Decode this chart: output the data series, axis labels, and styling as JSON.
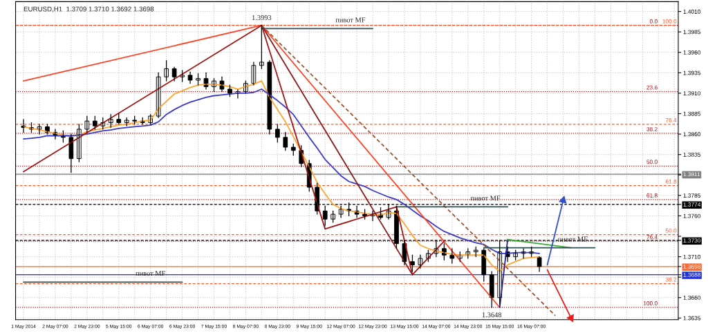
{
  "chart_data": {
    "type": "candlestick",
    "title": "EURUSD,H1  1.3709 1.3710 1.3692 1.3698",
    "color": "#000000",
    "categories": [
      "1 May 2014",
      null,
      null,
      null,
      "2 May 07:00",
      null,
      null,
      null,
      "2 May 23:00",
      null,
      null,
      null,
      "5 May 15:00",
      null,
      null,
      null,
      "6 May 07:00",
      null,
      null,
      null,
      "6 May 23:00",
      null,
      null,
      null,
      "7 May 15:00",
      null,
      null,
      null,
      "8 May 07:00",
      null,
      null,
      null,
      "8 May 23:00",
      null,
      null,
      null,
      "9 May 15:00",
      null,
      null,
      null,
      "12 May 07:00",
      null,
      null,
      null,
      "12 May 23:00",
      null,
      null,
      null,
      "13 May 15:00",
      null,
      null,
      null,
      "14 May 07:00",
      null,
      null,
      null,
      "14 May 23:00",
      null,
      null,
      null,
      "15 May 15:00",
      null,
      null,
      null,
      "16 May 07:00",
      null,
      null,
      null,
      null,
      null,
      null,
      null,
      null,
      null,
      null,
      null,
      null,
      null,
      null,
      null,
      null,
      null,
      null
    ],
    "ohlc": [
      [
        1.387,
        1.3878,
        1.3862,
        1.3868
      ],
      [
        1.3868,
        1.3874,
        1.3862,
        1.3866
      ],
      [
        1.3866,
        1.3872,
        1.386,
        1.3869
      ],
      [
        1.3869,
        1.3872,
        1.386,
        1.3862
      ],
      [
        1.3862,
        1.3866,
        1.3854,
        1.3858
      ],
      [
        1.3858,
        1.3864,
        1.385,
        1.3856
      ],
      [
        1.3856,
        1.386,
        1.3813,
        1.383
      ],
      [
        1.383,
        1.3872,
        1.3826,
        1.3866
      ],
      [
        1.3866,
        1.3882,
        1.3862,
        1.3876
      ],
      [
        1.3876,
        1.3882,
        1.3866,
        1.387
      ],
      [
        1.387,
        1.388,
        1.3866,
        1.3874
      ],
      [
        1.3874,
        1.3884,
        1.3868,
        1.3878
      ],
      [
        1.3878,
        1.3885,
        1.3872,
        1.3874
      ],
      [
        1.3874,
        1.388,
        1.387,
        1.3877
      ],
      [
        1.3877,
        1.3882,
        1.3872,
        1.3876
      ],
      [
        1.3876,
        1.388,
        1.3872,
        1.3874
      ],
      [
        1.3874,
        1.3884,
        1.3872,
        1.3882
      ],
      [
        1.3882,
        1.3935,
        1.388,
        1.393
      ],
      [
        1.393,
        1.395,
        1.3925,
        1.394
      ],
      [
        1.394,
        1.3942,
        1.3925,
        1.393
      ],
      [
        1.393,
        1.3938,
        1.3924,
        1.3932
      ],
      [
        1.3932,
        1.3936,
        1.3922,
        1.3926
      ],
      [
        1.3926,
        1.3934,
        1.392,
        1.3928
      ],
      [
        1.3928,
        1.3935,
        1.3915,
        1.3918
      ],
      [
        1.3918,
        1.3928,
        1.3912,
        1.3925
      ],
      [
        1.3925,
        1.393,
        1.3912,
        1.3915
      ],
      [
        1.3915,
        1.392,
        1.3906,
        1.391
      ],
      [
        1.391,
        1.3914,
        1.3904,
        1.3912
      ],
      [
        1.3912,
        1.3925,
        1.391,
        1.3922
      ],
      [
        1.3922,
        1.3948,
        1.392,
        1.3944
      ],
      [
        1.3944,
        1.3993,
        1.394,
        1.3948
      ],
      [
        1.3948,
        1.395,
        1.386,
        1.3866
      ],
      [
        1.3866,
        1.3872,
        1.385,
        1.3856
      ],
      [
        1.3856,
        1.3862,
        1.384,
        1.3844
      ],
      [
        1.3844,
        1.3848,
        1.3834,
        1.384
      ],
      [
        1.384,
        1.3846,
        1.382,
        1.3824
      ],
      [
        1.3824,
        1.3828,
        1.379,
        1.3795
      ],
      [
        1.3795,
        1.38,
        1.3762,
        1.3766
      ],
      [
        1.3766,
        1.3772,
        1.3748,
        1.3756
      ],
      [
        1.3756,
        1.3766,
        1.3752,
        1.3762
      ],
      [
        1.3762,
        1.3772,
        1.3758,
        1.3768
      ],
      [
        1.3768,
        1.3776,
        1.376,
        1.3766
      ],
      [
        1.3766,
        1.3772,
        1.3758,
        1.3762
      ],
      [
        1.3762,
        1.3768,
        1.3756,
        1.376
      ],
      [
        1.376,
        1.3766,
        1.3754,
        1.3762
      ],
      [
        1.3762,
        1.377,
        1.3756,
        1.3758
      ],
      [
        1.3758,
        1.3774,
        1.3756,
        1.3766
      ],
      [
        1.3766,
        1.3772,
        1.372,
        1.3726
      ],
      [
        1.3726,
        1.373,
        1.37,
        1.3704
      ],
      [
        1.3704,
        1.3712,
        1.3692,
        1.37
      ],
      [
        1.37,
        1.3712,
        1.3696,
        1.3708
      ],
      [
        1.3708,
        1.3718,
        1.3704,
        1.3714
      ],
      [
        1.3714,
        1.373,
        1.371,
        1.372
      ],
      [
        1.372,
        1.3726,
        1.3706,
        1.3712
      ],
      [
        1.3712,
        1.372,
        1.3702,
        1.3708
      ],
      [
        1.3708,
        1.3716,
        1.3704,
        1.3712
      ],
      [
        1.3712,
        1.372,
        1.3708,
        1.3716
      ],
      [
        1.3716,
        1.3722,
        1.371,
        1.3718
      ],
      [
        1.3718,
        1.372,
        1.368,
        1.3688
      ],
      [
        1.3688,
        1.3692,
        1.3648,
        1.366
      ],
      [
        1.366,
        1.373,
        1.3652,
        1.3716
      ],
      [
        1.3716,
        1.3722,
        1.3704,
        1.371
      ],
      [
        1.371,
        1.3718,
        1.3706,
        1.3714
      ],
      [
        1.3714,
        1.372,
        1.3708,
        1.3716
      ],
      [
        1.3716,
        1.3722,
        1.371,
        1.3714
      ],
      [
        1.3709,
        1.371,
        1.3692,
        1.3698
      ],
      null,
      null,
      null,
      null,
      null,
      null,
      null,
      null,
      null,
      null,
      null,
      null,
      null,
      null,
      null,
      null,
      null
    ],
    "series": [
      {
        "type": "line",
        "color": "#ffa531",
        "values": [
          1.3869,
          1.3867,
          1.3865,
          1.3863,
          1.3861,
          1.3859,
          1.3857,
          1.3859,
          1.3863,
          1.3865,
          1.3867,
          1.3869,
          1.3871,
          1.3872,
          1.3874,
          1.3876,
          1.3877,
          1.3891,
          1.39,
          1.3909,
          1.3913,
          1.3917,
          1.392,
          1.3921,
          1.3921,
          1.392,
          1.3918,
          1.3915,
          1.3918,
          1.3921,
          1.3925,
          1.3905,
          1.389,
          1.3875,
          1.3857,
          1.3838,
          1.382,
          1.3801,
          1.3787,
          1.3774,
          1.3769,
          1.3766,
          1.3765,
          1.3763,
          1.3762,
          1.3761,
          1.3764,
          1.3763,
          1.375,
          1.3736,
          1.3724,
          1.372,
          1.3717,
          1.3715,
          1.3713,
          1.3712,
          1.3712,
          1.3712,
          1.3712,
          1.37,
          1.3692,
          1.37,
          1.3704,
          1.3708,
          1.3709,
          1.371,
          null,
          null,
          null,
          null,
          null,
          null,
          null,
          null,
          null,
          null,
          null,
          null,
          null,
          null,
          null,
          null,
          null
        ]
      },
      {
        "type": "line",
        "color": "#3a3ac8",
        "values": [
          1.3854,
          1.3855,
          1.3856,
          1.3858,
          1.3858,
          1.3858,
          1.3858,
          1.3859,
          1.386,
          1.3862,
          1.3864,
          1.3865,
          1.3867,
          1.3868,
          1.3869,
          1.387,
          1.3871,
          1.3875,
          1.3884,
          1.389,
          1.3895,
          1.3899,
          1.3902,
          1.3905,
          1.3907,
          1.3908,
          1.3909,
          1.391,
          1.391,
          1.3911,
          1.3915,
          1.3908,
          1.3901,
          1.3893,
          1.3884,
          1.387,
          1.3856,
          1.3843,
          1.3829,
          1.3819,
          1.3809,
          1.3802,
          1.3799,
          1.3796,
          1.3791,
          1.3787,
          1.3783,
          1.378,
          1.3774,
          1.3767,
          1.376,
          1.3754,
          1.3747,
          1.3741,
          1.3737,
          1.3733,
          1.373,
          1.3727,
          1.3725,
          1.3719,
          1.3714,
          1.3714,
          1.3715,
          1.3715,
          1.3715,
          1.3714,
          null,
          null,
          null,
          null,
          null,
          null,
          null,
          null,
          null,
          null,
          null,
          null,
          null,
          null,
          null,
          null,
          null
        ]
      },
      {
        "type": "line",
        "color": "#ff4326",
        "values": [
          1.3925,
          null,
          null,
          null,
          null,
          null,
          null,
          null,
          null,
          null,
          null,
          null,
          null,
          null,
          null,
          null,
          null,
          null,
          null,
          null,
          null,
          null,
          null,
          null,
          null,
          null,
          null,
          null,
          null,
          null,
          1.3993,
          null,
          null,
          null,
          null,
          null,
          null,
          null,
          null,
          null,
          null,
          null,
          null,
          null,
          null,
          null,
          null,
          null,
          null,
          null,
          null,
          null,
          null,
          null,
          null,
          null,
          null,
          null,
          null,
          null,
          1.3648,
          null,
          null,
          null,
          null,
          null,
          null,
          null,
          null,
          null,
          null,
          null,
          null,
          null,
          null,
          null,
          null,
          null,
          null,
          null,
          null,
          null,
          null
        ]
      },
      {
        "type": "line",
        "color": "#a31515",
        "values": [
          1.3814,
          null,
          null,
          null,
          null,
          null,
          null,
          null,
          null,
          null,
          null,
          null,
          null,
          null,
          null,
          null,
          null,
          null,
          null,
          null,
          null,
          null,
          null,
          null,
          null,
          null,
          null,
          null,
          null,
          null,
          1.3993,
          null,
          null,
          null,
          null,
          null,
          null,
          null,
          1.3744,
          null,
          null,
          null,
          null,
          null,
          null,
          null,
          null,
          1.3771,
          null,
          1.3688,
          null,
          null,
          null,
          1.3729,
          null,
          null,
          null,
          null,
          null,
          null,
          null,
          null,
          null,
          null,
          null,
          null,
          null,
          null,
          null,
          null,
          null,
          null,
          null,
          null,
          null,
          null,
          null,
          null,
          null,
          null,
          null,
          null,
          null
        ]
      },
      {
        "type": "line",
        "color": "#8b1a1a",
        "values": [
          null,
          null,
          null,
          null,
          null,
          null,
          null,
          null,
          null,
          null,
          null,
          null,
          null,
          null,
          null,
          null,
          null,
          null,
          null,
          null,
          null,
          null,
          null,
          null,
          null,
          null,
          null,
          null,
          null,
          null,
          1.3993,
          null,
          null,
          null,
          null,
          null,
          null,
          null,
          null,
          null,
          null,
          null,
          null,
          null,
          null,
          null,
          null,
          null,
          null,
          1.3688,
          null,
          null,
          null,
          null,
          null,
          null,
          null,
          null,
          null,
          null,
          null,
          null,
          null,
          null,
          null,
          null,
          null,
          null,
          null,
          null,
          null,
          null,
          null,
          null,
          null,
          null,
          null,
          null,
          null,
          null,
          null,
          null,
          null
        ]
      },
      {
        "type": "line",
        "color": "#a0522d",
        "line_style": "dashed",
        "values": [
          null,
          null,
          null,
          null,
          null,
          null,
          null,
          null,
          null,
          null,
          null,
          null,
          null,
          null,
          null,
          null,
          null,
          null,
          null,
          null,
          null,
          null,
          null,
          null,
          null,
          null,
          null,
          null,
          null,
          null,
          1.3993,
          null,
          null,
          null,
          null,
          null,
          null,
          null,
          null,
          null,
          null,
          null,
          null,
          null,
          null,
          null,
          null,
          null,
          null,
          null,
          null,
          null,
          null,
          null,
          null,
          null,
          null,
          null,
          null,
          null,
          null,
          null,
          null,
          null,
          null,
          null,
          null,
          1.3638,
          null,
          null,
          null,
          null,
          null,
          null,
          null,
          null,
          null,
          null,
          null,
          null,
          null,
          null,
          null
        ]
      },
      {
        "type": "line",
        "color": "#1f1f8f",
        "values": [
          null,
          null,
          null,
          null,
          null,
          null,
          null,
          null,
          null,
          null,
          null,
          null,
          null,
          null,
          null,
          null,
          null,
          null,
          null,
          null,
          null,
          null,
          null,
          null,
          null,
          null,
          null,
          null,
          null,
          null,
          null,
          null,
          null,
          null,
          null,
          null,
          null,
          null,
          null,
          null,
          null,
          null,
          null,
          null,
          null,
          null,
          null,
          null,
          null,
          null,
          null,
          null,
          null,
          null,
          null,
          null,
          null,
          null,
          null,
          null,
          1.3648,
          1.3731,
          null,
          null,
          null,
          null,
          null,
          null,
          null,
          null,
          null,
          null,
          null,
          null,
          null,
          null,
          null,
          null,
          null,
          null,
          null,
          null,
          null
        ]
      },
      {
        "type": "line",
        "color": "#33aa33",
        "values": [
          null,
          null,
          null,
          null,
          null,
          null,
          null,
          null,
          null,
          null,
          null,
          null,
          null,
          null,
          null,
          null,
          null,
          null,
          null,
          null,
          null,
          null,
          null,
          null,
          null,
          null,
          null,
          null,
          null,
          null,
          null,
          null,
          null,
          null,
          null,
          null,
          null,
          null,
          null,
          null,
          null,
          null,
          null,
          null,
          null,
          null,
          null,
          null,
          null,
          null,
          null,
          null,
          null,
          null,
          null,
          null,
          null,
          null,
          null,
          null,
          null,
          1.3731,
          null,
          null,
          null,
          null,
          null,
          null,
          null,
          1.3721,
          null,
          null,
          null,
          null,
          null,
          null,
          null,
          null,
          null,
          null,
          null,
          null,
          null
        ]
      },
      {
        "type": "line",
        "color": "#2f4f4f",
        "values": [
          null,
          null,
          null,
          null,
          null,
          null,
          null,
          null,
          null,
          null,
          null,
          null,
          null,
          null,
          null,
          null,
          null,
          null,
          null,
          null,
          null,
          null,
          null,
          null,
          null,
          null,
          null,
          null,
          null,
          null,
          1.3989,
          null,
          null,
          null,
          null,
          null,
          null,
          null,
          null,
          null,
          null,
          null,
          null,
          null,
          1.3989,
          null,
          null,
          null,
          null,
          null,
          null,
          null,
          null,
          null,
          null,
          null,
          null,
          null,
          null,
          null,
          null,
          null,
          null,
          null,
          null,
          null,
          null,
          null,
          null,
          null,
          null,
          null,
          null,
          null,
          null,
          null,
          null,
          null,
          null,
          null,
          null,
          null,
          null
        ]
      },
      {
        "type": "line",
        "color": "#2f4f4f",
        "values": [
          null,
          null,
          null,
          null,
          null,
          null,
          null,
          null,
          null,
          null,
          null,
          null,
          null,
          null,
          null,
          null,
          null,
          null,
          null,
          null,
          null,
          null,
          null,
          null,
          null,
          null,
          null,
          null,
          null,
          null,
          null,
          null,
          null,
          null,
          null,
          null,
          null,
          null,
          null,
          null,
          null,
          null,
          null,
          null,
          null,
          null,
          null,
          1.3771,
          null,
          null,
          null,
          null,
          null,
          null,
          null,
          null,
          null,
          null,
          null,
          null,
          null,
          1.3771,
          null,
          null,
          null,
          null,
          null,
          null,
          null,
          null,
          null,
          null,
          null,
          null,
          null,
          null,
          null,
          null,
          null,
          null,
          null,
          null,
          null
        ]
      },
      {
        "type": "line",
        "color": "#2f4f4f",
        "values": [
          null,
          null,
          null,
          null,
          null,
          null,
          null,
          null,
          null,
          null,
          null,
          null,
          null,
          null,
          null,
          null,
          null,
          null,
          null,
          null,
          null,
          null,
          null,
          null,
          null,
          null,
          null,
          null,
          null,
          null,
          null,
          null,
          null,
          null,
          null,
          null,
          null,
          null,
          null,
          null,
          null,
          null,
          null,
          null,
          null,
          null,
          null,
          null,
          null,
          null,
          null,
          null,
          null,
          null,
          null,
          null,
          null,
          null,
          1.3721,
          null,
          null,
          null,
          null,
          null,
          null,
          null,
          null,
          null,
          null,
          null,
          null,
          null,
          1.3721,
          null,
          null,
          null,
          null,
          null,
          null,
          null,
          null,
          null,
          null
        ]
      },
      {
        "type": "line",
        "color": "#2f4f4f",
        "values": [
          1.3679,
          null,
          null,
          null,
          null,
          null,
          null,
          null,
          null,
          null,
          null,
          null,
          null,
          null,
          null,
          null,
          null,
          null,
          null,
          null,
          1.3679,
          null,
          null,
          null,
          null,
          null,
          null,
          null,
          null,
          null,
          null,
          null,
          null,
          null,
          null,
          null,
          null,
          null,
          null,
          null,
          null,
          null,
          null,
          null,
          null,
          null,
          null,
          null,
          null,
          null,
          null,
          null,
          null,
          null,
          null,
          null,
          null,
          null,
          null,
          null,
          null,
          null,
          null,
          null,
          null,
          null,
          null,
          null,
          null,
          null,
          null,
          null,
          null,
          null,
          null,
          null,
          null,
          null,
          null,
          null,
          null,
          null,
          null
        ]
      },
      {
        "type": "line",
        "color": "#3050d0",
        "marker": "triangle",
        "values": [
          null,
          null,
          null,
          null,
          null,
          null,
          null,
          null,
          null,
          null,
          null,
          null,
          null,
          null,
          null,
          null,
          null,
          null,
          null,
          null,
          null,
          null,
          null,
          null,
          null,
          null,
          null,
          null,
          null,
          null,
          null,
          null,
          null,
          null,
          null,
          null,
          null,
          null,
          null,
          null,
          null,
          null,
          null,
          null,
          null,
          null,
          null,
          null,
          null,
          null,
          null,
          null,
          null,
          null,
          null,
          null,
          null,
          null,
          null,
          null,
          null,
          null,
          null,
          null,
          null,
          null,
          1.37,
          null,
          1.3779,
          null,
          null,
          null,
          null,
          null,
          null,
          null,
          null,
          null,
          null,
          null,
          null,
          null,
          null
        ]
      },
      {
        "type": "line",
        "color": "#e02020",
        "marker": "triangle",
        "values": [
          null,
          null,
          null,
          null,
          null,
          null,
          null,
          null,
          null,
          null,
          null,
          null,
          null,
          null,
          null,
          null,
          null,
          null,
          null,
          null,
          null,
          null,
          null,
          null,
          null,
          null,
          null,
          null,
          null,
          null,
          null,
          null,
          null,
          null,
          null,
          null,
          null,
          null,
          null,
          null,
          null,
          null,
          null,
          null,
          null,
          null,
          null,
          null,
          null,
          null,
          null,
          null,
          null,
          null,
          null,
          null,
          null,
          null,
          null,
          null,
          null,
          null,
          null,
          null,
          null,
          null,
          1.3694,
          null,
          null,
          1.3635,
          null,
          null,
          null,
          null,
          null,
          null,
          null,
          null,
          null,
          null,
          null,
          null,
          null
        ]
      }
    ],
    "ref_lines": [
      {
        "axis": "y",
        "value": 1.3993,
        "color": "#a31515",
        "line_style": "dotted"
      },
      {
        "axis": "y",
        "value": 1.3993,
        "color": "#ff5a2a",
        "line_style": "dashed"
      },
      {
        "axis": "y",
        "value": 1.3912,
        "color": "#a31515",
        "line_style": "dotted"
      },
      {
        "axis": "y",
        "value": 1.3861,
        "color": "#a31515",
        "line_style": "dotted"
      },
      {
        "axis": "y",
        "value": 1.3821,
        "color": "#a31515",
        "line_style": "dotted"
      },
      {
        "axis": "y",
        "value": 1.378,
        "color": "#a31515",
        "line_style": "dotted"
      },
      {
        "axis": "y",
        "value": 1.3729,
        "color": "#a31515",
        "line_style": "dotted"
      },
      {
        "axis": "y",
        "value": 1.3648,
        "color": "#a31515",
        "line_style": "dotted"
      },
      {
        "axis": "y",
        "value": 1.3872,
        "color": "#ff5a2a",
        "line_style": "dashed"
      },
      {
        "axis": "y",
        "value": 1.3797,
        "color": "#ff5a2a",
        "line_style": "dashed"
      },
      {
        "axis": "y",
        "value": 1.3737,
        "color": "#ff5a2a",
        "line_style": "dashed"
      },
      {
        "axis": "y",
        "value": 1.3677,
        "color": "#ff5a2a",
        "line_style": "dashed"
      },
      {
        "axis": "y",
        "value": 1.3811,
        "color": "#808080",
        "line_style": "solid"
      },
      {
        "axis": "y",
        "value": 1.3774,
        "color": "#000000",
        "line_style": "dashed"
      },
      {
        "axis": "y",
        "value": 1.373,
        "color": "#000000",
        "line_style": "dashed"
      },
      {
        "axis": "y",
        "value": 1.3698,
        "color": "#ff6a33",
        "line_style": "solid"
      },
      {
        "axis": "y",
        "value": 1.3688,
        "color": "#2030e0",
        "line_style": "solid"
      }
    ],
    "annotations": [
      "1.3993",
      "1.3648",
      "пивот MF",
      "пивот MF",
      "пивот MF",
      "пивот MF",
      "0.0",
      "100.0",
      "23.6",
      "38.2",
      "50.0",
      "61.8",
      "76.4",
      "100.0",
      "76.4",
      "61.8",
      "50.0",
      "38.2"
    ],
    "ylim": [
      1.3633,
      1.4022
    ],
    "yticks": [
      {
        "value": 1.401,
        "label": "1.4010"
      },
      1.3985,
      {
        "value": 1.396,
        "label": "1.3960"
      },
      1.3935,
      {
        "value": 1.391,
        "label": "1.3910"
      },
      1.3885,
      {
        "value": 1.386,
        "label": "1.3860"
      },
      1.3835,
      {
        "value": 1.381,
        "label": null
      },
      {
        "value": 1.3811,
        "label": "1.3811"
      },
      1.3785,
      {
        "value": 1.3774,
        "label": "1.3774"
      },
      {
        "value": 1.376,
        "label": "1.3760"
      },
      {
        "value": 1.3735,
        "label": null
      },
      {
        "value": 1.373,
        "label": "1.3730"
      },
      {
        "value": 1.371,
        "label": "1.3710"
      },
      {
        "value": 1.3698,
        "label": "1.3698"
      },
      {
        "value": 1.3688,
        "label": "1.3688"
      },
      {
        "value": 1.3685,
        "label": null
      },
      {
        "value": 1.366,
        "label": "1.3660"
      },
      1.3635
    ],
    "grid": true
  }
}
